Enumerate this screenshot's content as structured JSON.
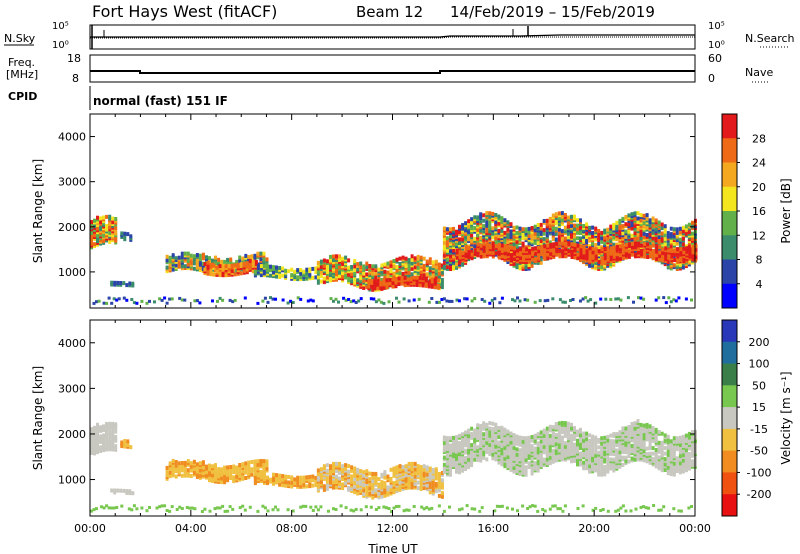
{
  "header": {
    "station": "Fort Hays West (fitACF)",
    "beam": "Beam 12",
    "dates": "14/Feb/2019 – 15/Feb/2019"
  },
  "strips": {
    "noise": {
      "left_label": "N.Sky",
      "right_label": "N.Search",
      "left_ticks": [
        "10^5",
        "10^0"
      ],
      "right_ticks": [
        "10^5",
        "10^0"
      ]
    },
    "freq": {
      "left_label_1": "Freq.",
      "left_label_2": "[MHz]",
      "right_label": "Nave",
      "left_ticks": [
        "18",
        "8"
      ],
      "right_ticks": [
        "60",
        "0"
      ]
    },
    "cpid": {
      "label": "CPID",
      "text": "normal (fast) 151 IF"
    }
  },
  "chart_data": [
    {
      "type": "heatmap",
      "title": "",
      "xlabel": "",
      "ylabel": "Slant Range [km]",
      "yticks": [
        "1000",
        "2000",
        "3000",
        "4000"
      ],
      "ylim": [
        200,
        4500
      ],
      "colorbar_label": "Power [dB]",
      "colorbar_ticks": [
        "4",
        "8",
        "12",
        "16",
        "20",
        "24",
        "28"
      ],
      "colors": [
        "#0000ff",
        "#2a44a8",
        "#3b8c6c",
        "#62b04a",
        "#f3e61f",
        "#f4a820",
        "#ef6a16",
        "#e31a1c"
      ]
    },
    {
      "type": "heatmap",
      "title": "",
      "xlabel": "Time UT",
      "ylabel": "Slant Range [km]",
      "yticks": [
        "1000",
        "2000",
        "3000",
        "4000"
      ],
      "ylim": [
        200,
        4500
      ],
      "xticks": [
        "00:00",
        "04:00",
        "08:00",
        "12:00",
        "16:00",
        "20:00",
        "00:00"
      ],
      "colorbar_label": "Velocity [m s⁻¹]",
      "colorbar_ticks": [
        "200",
        "100",
        "50",
        "15",
        "-15",
        "-50",
        "-100",
        "-200"
      ],
      "colors": [
        "#2838b8",
        "#1f6e9e",
        "#3a7f4a",
        "#78c850",
        "#c8c8c0",
        "#f0c040",
        "#f08c20",
        "#f05010",
        "#e81010"
      ]
    }
  ]
}
